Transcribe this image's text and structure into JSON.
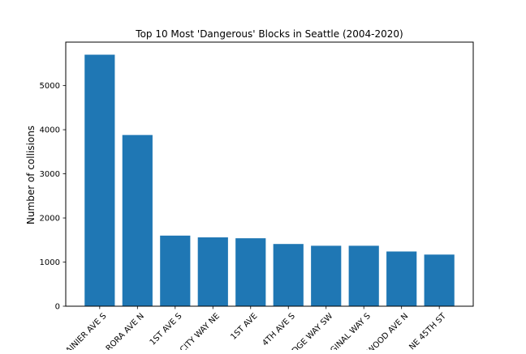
{
  "chart_data": {
    "type": "bar",
    "title": "Top 10 Most 'Dangerous' Blocks in Seattle (2004-2020)",
    "xlabel": "",
    "ylabel": "Number of collisions",
    "categories": [
      "RAINIER AVE S",
      "AURORA AVE N",
      "1ST AVE S",
      "LAKE CITY WAY NE",
      "1ST AVE",
      "4TH AVE S",
      "DELRIDGE WAY SW",
      "ORIGINAL WAY S",
      "GREENWOOD AVE N",
      "NE 45TH ST"
    ],
    "visible_tick_labels": [
      "AINIER AVE S",
      "RORA AVE N",
      "1ST AVE S",
      "CITY WAY NE",
      "1ST AVE",
      "4TH AVE S",
      "DGE WAY SW",
      "GINAL WAY S",
      "WOOD AVE N",
      "NE 45TH ST"
    ],
    "values": [
      5700,
      3880,
      1600,
      1560,
      1540,
      1410,
      1370,
      1370,
      1240,
      1170
    ],
    "ylim": [
      0,
      5985
    ],
    "yticks": [
      0,
      1000,
      2000,
      3000,
      4000,
      5000
    ],
    "grid": false,
    "bar_color": "#1f77b4"
  }
}
